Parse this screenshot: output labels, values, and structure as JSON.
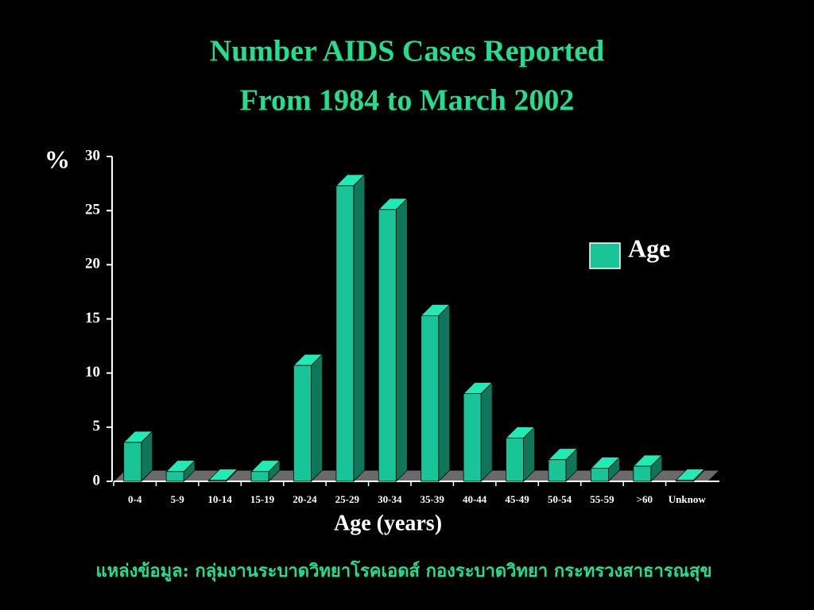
{
  "chart_data": {
    "type": "bar3d",
    "title": [
      "Number AIDS Cases Reported",
      "From 1984 to March 2002"
    ],
    "y_label": "%",
    "x_label": "Age (years)",
    "source": "แหล่งข้อมูล: กลุ่มงานระบาดวิทยาโรคเอดส์ กองระบาดวิทยา กระทรวงสาธารณสุข",
    "categories": [
      "0-4",
      "5-9",
      "10-14",
      "15-19",
      "20-24",
      "25-29",
      "30-34",
      "35-39",
      "40-44",
      "45-49",
      "50-54",
      "55-59",
      ">60",
      "Unknow"
    ],
    "series": [
      {
        "name": "Age",
        "color": "#19c596",
        "values": [
          3.6,
          0.9,
          0.1,
          0.9,
          10.7,
          27.3,
          25.1,
          15.3,
          8.1,
          4.0,
          2.0,
          1.2,
          1.4,
          0.1
        ]
      }
    ],
    "ylim": [
      0,
      30
    ],
    "yticks": [
      0,
      5,
      10,
      15,
      20,
      25,
      30
    ],
    "legend": "right"
  }
}
